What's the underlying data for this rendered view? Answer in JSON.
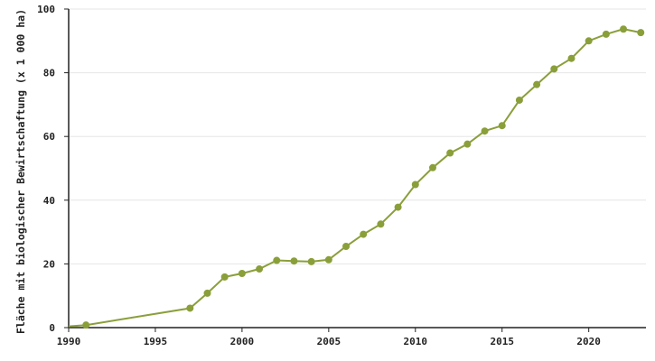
{
  "colors": {
    "series": "#8a9f3a",
    "grid": "#e6e6e6",
    "axis": "#222222",
    "text": "#222222"
  },
  "chart_data": {
    "type": "line",
    "title": "",
    "xlabel": "",
    "ylabel": "Fläche mit biologischer Bewirtschaftung (x 1 000 ha)",
    "xlim": [
      1990,
      2023.3
    ],
    "ylim": [
      0,
      100
    ],
    "xticks": [
      1990,
      1995,
      2000,
      2005,
      2010,
      2015,
      2020
    ],
    "yticks": [
      0,
      20,
      40,
      60,
      80,
      100
    ],
    "grid": "horizontal",
    "legend": "none",
    "series": [
      {
        "x": [
          1991,
          1997,
          1998,
          1999,
          2000,
          2001,
          2002,
          2003,
          2004,
          2005,
          2006,
          2007,
          2008,
          2009,
          2010,
          2011,
          2012,
          2013,
          2014,
          2015,
          2016,
          2017,
          2018,
          2019,
          2020,
          2021,
          2022,
          2023
        ],
        "y": [
          0.8,
          6.1,
          10.8,
          15.9,
          17.0,
          18.4,
          21.1,
          20.9,
          20.7,
          21.3,
          25.5,
          29.3,
          32.5,
          37.8,
          44.9,
          50.2,
          54.8,
          57.6,
          61.7,
          63.4,
          71.4,
          76.3,
          81.2,
          84.5,
          90.0,
          92.1,
          93.7,
          92.6
        ]
      }
    ]
  }
}
